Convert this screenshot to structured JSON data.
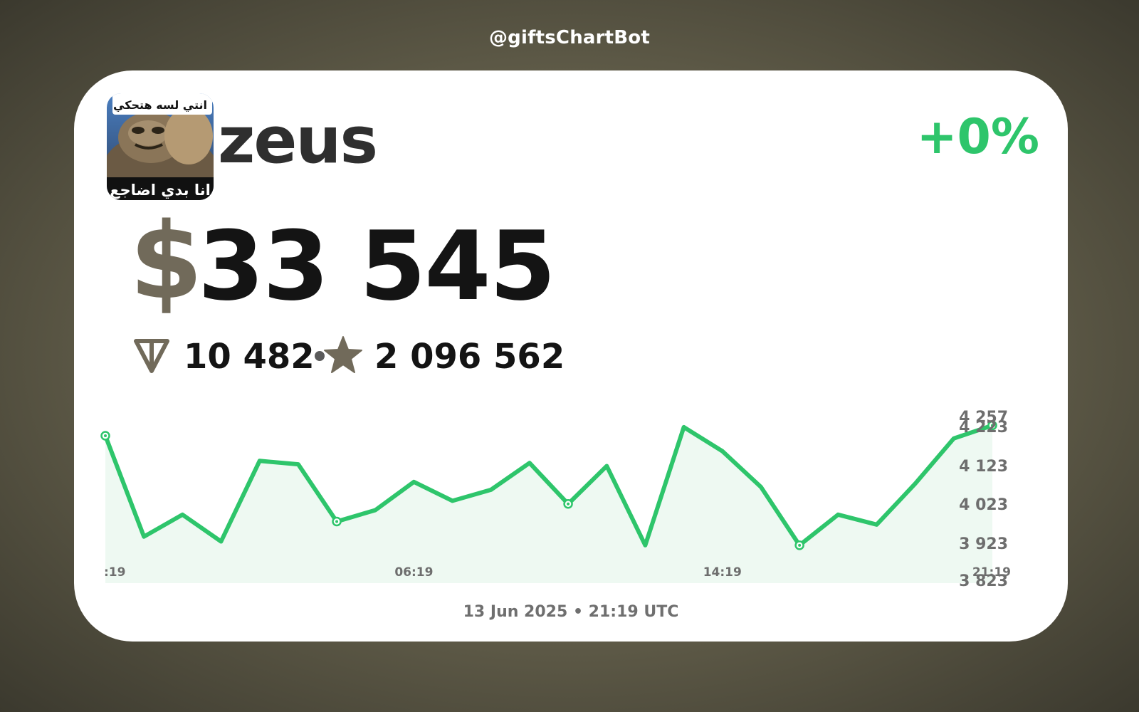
{
  "header": {
    "bot_handle": "@giftsChartBot"
  },
  "gift": {
    "name": "zeus",
    "change": "+0%",
    "price_usd_symbol": "$",
    "price_usd": "33 545",
    "price_ton": "10 482",
    "price_stars": "2 096 562",
    "avatar_caption_top": "انتي لسه هتحكي",
    "avatar_caption_bottom": "انا بدي اضاجع"
  },
  "icons": {
    "ton": "ton-icon",
    "stars": "star-icon",
    "separator": "dot"
  },
  "colors": {
    "accent": "#2ec56b",
    "muted": "#716a5a",
    "text": "#141414",
    "fill": "#eef9f2"
  },
  "footer": {
    "date": "13 Jun 2025 • 21:19 UTC"
  },
  "chart_data": {
    "type": "line",
    "title": "",
    "xlabel": "",
    "ylabel": "",
    "x_ticks": [
      {
        "index": 0,
        "label": ":19"
      },
      {
        "index": 8,
        "label": "06:19"
      },
      {
        "index": 16,
        "label": "14:19"
      },
      {
        "index": 23,
        "label": "21:19"
      }
    ],
    "y_ticks": [
      "4 257",
      "4 223",
      "4 123",
      "4 023",
      "3 923",
      "3 823"
    ],
    "ylim": [
      3823,
      4257
    ],
    "highlight_indices": [
      0,
      6,
      12,
      18,
      23
    ],
    "series": [
      {
        "name": "price",
        "values": [
          4193,
          3900,
          3964,
          3886,
          4120,
          4110,
          3944,
          3977,
          4059,
          4004,
          4036,
          4114,
          3995,
          4105,
          3875,
          4218,
          4148,
          4044,
          3875,
          3964,
          3935,
          4054,
          4185,
          4223
        ]
      }
    ]
  }
}
